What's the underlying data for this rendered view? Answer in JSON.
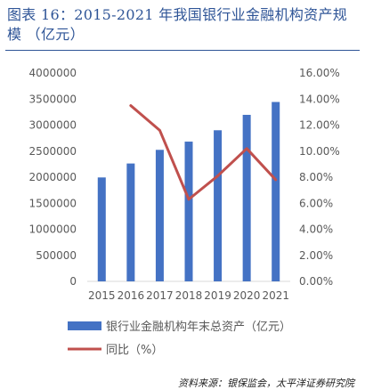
{
  "title": "图表 16：2015-2021 年我国银行业金融机构资产规模 （亿元）",
  "source": "资料来源：银保监会，太平洋证券研究院",
  "chart_data": {
    "type": "bar",
    "categories": [
      "2015",
      "2016",
      "2017",
      "2018",
      "2019",
      "2020",
      "2021"
    ],
    "left_axis": {
      "ylim": [
        0,
        4000000
      ],
      "ticks": [
        0,
        500000,
        1000000,
        1500000,
        2000000,
        2500000,
        3000000,
        3500000,
        4000000
      ],
      "tick_labels": [
        "0",
        "500000",
        "1000000",
        "1500000",
        "2000000",
        "2500000",
        "3000000",
        "3500000",
        "4000000"
      ]
    },
    "right_axis": {
      "ylim": [
        0,
        16
      ],
      "ticks": [
        0,
        2,
        4,
        6,
        8,
        10,
        12,
        14,
        16
      ],
      "tick_labels": [
        "0.00%",
        "2.00%",
        "4.00%",
        "6.00%",
        "8.00%",
        "10.00%",
        "12.00%",
        "14.00%",
        "16.00%"
      ]
    },
    "series": [
      {
        "name": "银行业金融机构年末总资产（亿元）",
        "type": "bar",
        "axis": "left",
        "color": "#4472c4",
        "values": [
          1995000,
          2263000,
          2525000,
          2683000,
          2901000,
          3197000,
          3444000
        ]
      },
      {
        "name": "同比（%）",
        "type": "line",
        "axis": "right",
        "color": "#c0504d",
        "values": [
          null,
          13.5,
          11.6,
          6.3,
          8.1,
          10.2,
          7.8
        ]
      }
    ],
    "legend_position": "bottom",
    "grid": false
  }
}
